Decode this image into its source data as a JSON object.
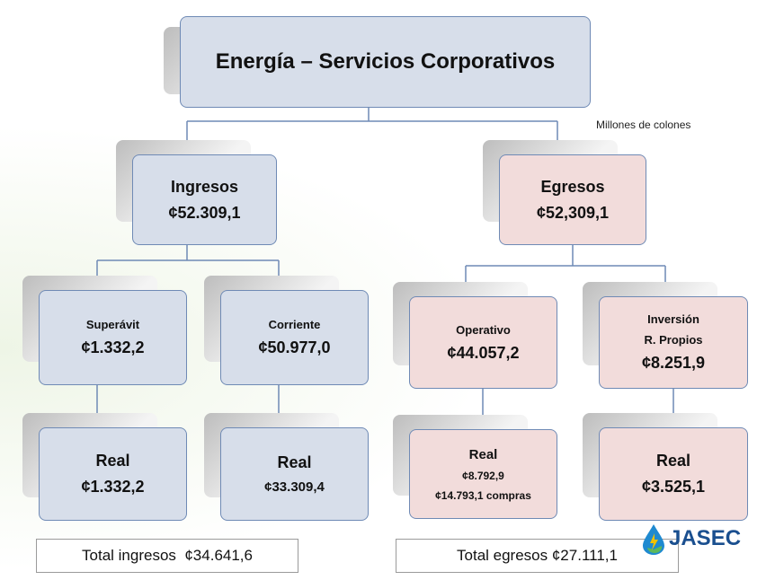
{
  "title": "Energía – Servicios Corporativos",
  "note": "Millones de colones",
  "nodes": [
    {
      "lines": [
        "Ingresos",
        "¢52.309,1"
      ]
    },
    {
      "lines": [
        "Egresos",
        "¢52,309,1"
      ]
    },
    {
      "lines": [
        "Superávit",
        "¢1.332,2"
      ]
    },
    {
      "lines": [
        "Corriente",
        "¢50.977,0"
      ]
    },
    {
      "lines": [
        "Operativo",
        "¢44.057,2"
      ]
    },
    {
      "lines": [
        "Inversión",
        "R. Propios",
        "¢8.251,9"
      ]
    },
    {
      "lines": [
        "Real",
        "¢1.332,2"
      ]
    },
    {
      "lines": [
        "Real",
        "¢33.309,4"
      ]
    },
    {
      "lines": [
        "Real",
        "¢8.792,9",
        "¢14.793,1 compras"
      ]
    },
    {
      "lines": [
        "Real",
        "¢3.525,1"
      ]
    }
  ],
  "totals": [
    "Total ingresos  ¢34.641,6",
    "Total egresos ¢27.111,1"
  ],
  "logo": "JASEC"
}
